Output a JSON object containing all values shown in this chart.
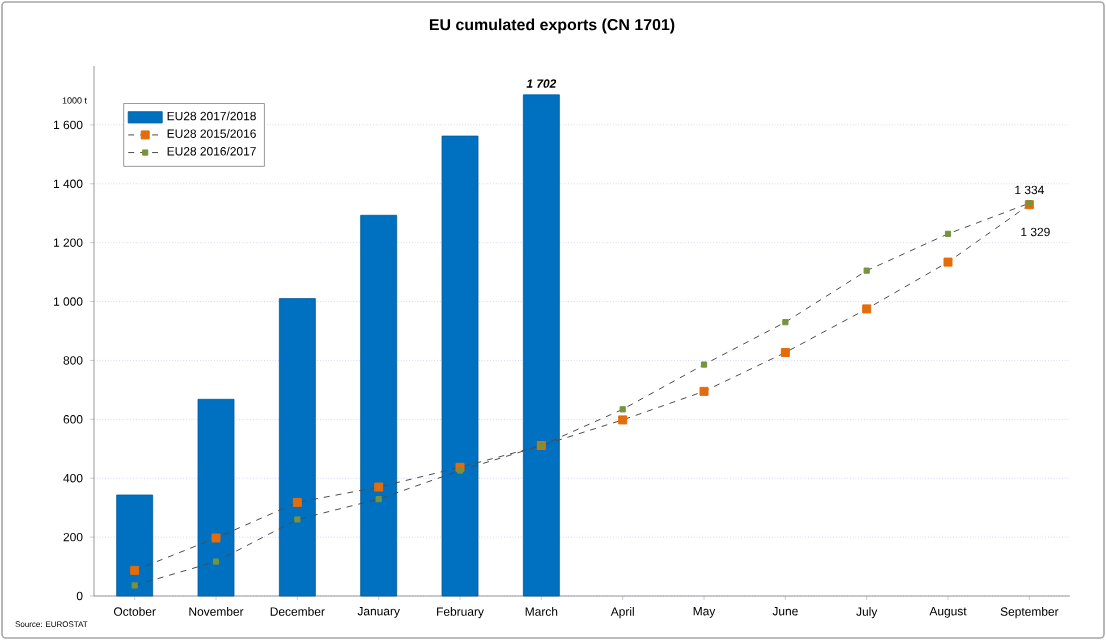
{
  "chart_data": {
    "type": "bar",
    "title": "EU cumulated exports (CN 1701)",
    "ylabel": "1000 t",
    "annotations": [
      "Source: EUROSTAT"
    ],
    "categories": [
      "October",
      "November",
      "December",
      "January",
      "February",
      "March",
      "April",
      "May",
      "June",
      "July",
      "August",
      "September"
    ],
    "series": [
      {
        "name": "EU28  2017/2018",
        "color": "#0070c0",
        "values": [
          343,
          668,
          1010,
          1293,
          1562,
          1702,
          null,
          null,
          null,
          null,
          null,
          null
        ],
        "value_labels": [
          null,
          null,
          null,
          null,
          null,
          "1 702",
          null,
          null,
          null,
          null,
          null,
          null
        ]
      },
      {
        "name": "EU28  2015/2016",
        "type": "line",
        "color": "#e46c0a",
        "values": [
          87,
          197,
          318,
          370,
          437,
          511,
          598,
          695,
          827,
          975,
          1134,
          1329
        ],
        "value_labels": [
          null,
          null,
          null,
          null,
          null,
          null,
          null,
          null,
          null,
          null,
          null,
          "1 329"
        ]
      },
      {
        "name": "EU28  2016/2017",
        "type": "line",
        "color": "#77933c",
        "values": [
          36,
          117,
          260,
          329,
          426,
          511,
          634,
          786,
          930,
          1105,
          1230,
          1334
        ],
        "value_labels": [
          null,
          null,
          null,
          null,
          null,
          null,
          null,
          null,
          null,
          null,
          null,
          "1 334"
        ]
      }
    ],
    "ylim": [
      0,
      1800
    ],
    "yticks": [
      0,
      200,
      400,
      600,
      800,
      {
        "value": 1000,
        "label": "1 000"
      },
      {
        "value": 1200,
        "label": "1 200"
      },
      {
        "value": 1400,
        "label": "1 400"
      },
      {
        "value": 1600,
        "label": "1 600"
      }
    ],
    "grid": "y",
    "legend": "top left",
    "marker": "square",
    "line_style": "dashed"
  }
}
